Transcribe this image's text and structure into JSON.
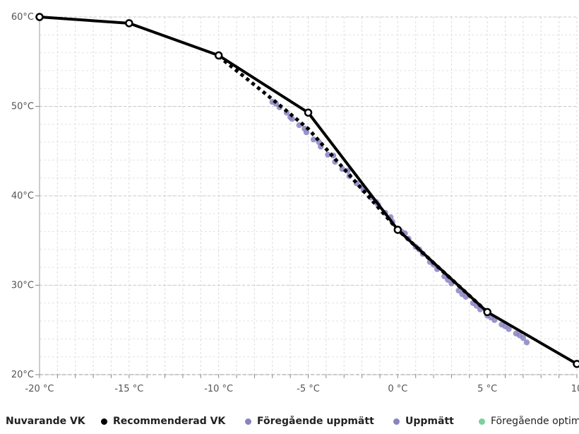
{
  "chart_data": {
    "type": "line",
    "xlim": [
      -20,
      10
    ],
    "ylim": [
      20,
      60
    ],
    "grid": true,
    "legend_placement": "bottom",
    "x_ticks": [
      {
        "value": -20,
        "label": "-20 °C"
      },
      {
        "value": -15,
        "label": "-15 °C"
      },
      {
        "value": -10,
        "label": "-10 °C"
      },
      {
        "value": -5,
        "label": "-5 °C"
      },
      {
        "value": 0,
        "label": "0 °C"
      },
      {
        "value": 5,
        "label": "5 °C"
      },
      {
        "value": 10,
        "label": "10"
      }
    ],
    "y_ticks": [
      {
        "value": 60,
        "label": "60°C"
      },
      {
        "value": 50,
        "label": "50°C"
      },
      {
        "value": 40,
        "label": "40°C"
      },
      {
        "value": 30,
        "label": "30°C"
      },
      {
        "value": 20,
        "label": "20°C"
      }
    ],
    "series": [
      {
        "name": "Nuvarande VK",
        "color": "#000000",
        "style": "solid-line-with-points",
        "points": [
          [
            -20,
            60.0
          ],
          [
            -15,
            59.3
          ],
          [
            -10,
            55.7
          ],
          [
            -5,
            49.3
          ],
          [
            0,
            36.2
          ],
          [
            5,
            27.0
          ],
          [
            10,
            21.2
          ]
        ]
      },
      {
        "name": "Recommenderad VK",
        "color": "#000000",
        "style": "dotted-line",
        "points": [
          [
            -10,
            55.6
          ],
          [
            -7,
            50.8
          ],
          [
            -5,
            47.5
          ],
          [
            -3,
            43.0
          ],
          [
            -1,
            38.5
          ],
          [
            0,
            36.2
          ],
          [
            2,
            32.5
          ],
          [
            5,
            27.0
          ]
        ]
      },
      {
        "name": "Föregående uppmätt",
        "color": "#8884c2",
        "style": "scatter",
        "points": [
          [
            -7.0,
            50.5
          ],
          [
            -6.6,
            49.9
          ],
          [
            -6.2,
            49.3
          ],
          [
            -5.9,
            48.6
          ],
          [
            -5.5,
            47.9
          ],
          [
            -5.1,
            47.1
          ],
          [
            -4.7,
            46.3
          ],
          [
            -4.3,
            45.5
          ],
          [
            -3.9,
            44.6
          ],
          [
            -3.5,
            43.8
          ],
          [
            -3.1,
            43.0
          ],
          [
            -2.7,
            42.2
          ],
          [
            -2.3,
            41.4
          ],
          [
            -1.9,
            40.6
          ],
          [
            -1.5,
            39.8
          ],
          [
            -1.1,
            39.0
          ],
          [
            -0.7,
            38.1
          ],
          [
            -0.3,
            37.1
          ],
          [
            0.2,
            36.0
          ],
          [
            0.6,
            35.2
          ],
          [
            1.0,
            34.3
          ],
          [
            1.4,
            33.5
          ],
          [
            1.8,
            32.6
          ],
          [
            2.2,
            31.8
          ],
          [
            2.6,
            31.0
          ],
          [
            3.0,
            30.2
          ],
          [
            3.4,
            29.4
          ],
          [
            3.8,
            28.7
          ],
          [
            4.2,
            28.0
          ],
          [
            4.6,
            27.3
          ],
          [
            5.0,
            26.6
          ],
          [
            5.4,
            26.1
          ],
          [
            5.8,
            25.6
          ],
          [
            6.2,
            25.1
          ],
          [
            6.6,
            24.6
          ],
          [
            7.0,
            24.1
          ],
          [
            7.2,
            23.6
          ]
        ]
      },
      {
        "name": "Uppmätt",
        "color": "#8884c2",
        "style": "scatter",
        "points": [
          [
            -6.8,
            50.3
          ],
          [
            -6.0,
            48.8
          ],
          [
            -5.2,
            47.5
          ],
          [
            -4.4,
            46.0
          ],
          [
            -3.6,
            44.5
          ],
          [
            -2.8,
            42.8
          ],
          [
            -2.0,
            41.0
          ],
          [
            -1.2,
            39.3
          ],
          [
            -0.4,
            37.6
          ],
          [
            0.4,
            35.8
          ],
          [
            1.2,
            34.0
          ],
          [
            2.0,
            32.3
          ],
          [
            2.8,
            30.6
          ],
          [
            3.6,
            29.0
          ],
          [
            4.4,
            27.7
          ],
          [
            5.2,
            26.4
          ],
          [
            6.0,
            25.4
          ],
          [
            6.8,
            24.4
          ]
        ]
      },
      {
        "name": "Föregående optim",
        "color": "#7ecf9a",
        "style": "none",
        "points": []
      }
    ]
  },
  "legend": [
    {
      "label": "Nuvarande VK",
      "color": "#000000",
      "bold": true
    },
    {
      "label": "Recommenderad VK",
      "color": "#000000",
      "bold": true
    },
    {
      "label": "Föregående uppmätt",
      "color": "#8884c2",
      "bold": true
    },
    {
      "label": "Uppmätt",
      "color": "#8884c2",
      "bold": true
    },
    {
      "label": "Föregående optim",
      "color": "#7ecf9a",
      "bold": false
    }
  ]
}
